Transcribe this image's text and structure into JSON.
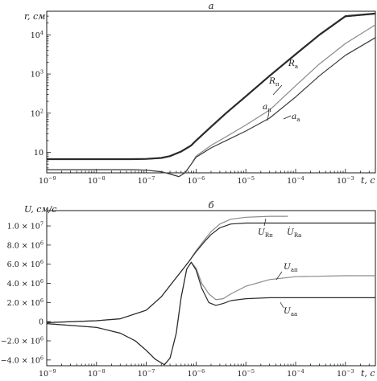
{
  "chart_data": [
    {
      "panel_label": "а",
      "type": "line",
      "ylabel": "r, см",
      "xlabel": "t, с",
      "xscale": "log",
      "yscale": "log",
      "xlim": [
        1e-09,
        0.004
      ],
      "ylim": [
        3,
        40000
      ],
      "x_ticks": [
        {
          "base": "10",
          "exp": "−9"
        },
        {
          "base": "10",
          "exp": "−8"
        },
        {
          "base": "10",
          "exp": "−7"
        },
        {
          "base": "10",
          "exp": "−6"
        },
        {
          "base": "10",
          "exp": "−5"
        },
        {
          "base": "10",
          "exp": "−4"
        },
        {
          "base": "10",
          "exp": "−3"
        }
      ],
      "x_tick_values": [
        1e-09,
        1e-08,
        1e-07,
        1e-06,
        1e-05,
        0.0001,
        0.001
      ],
      "y_ticks": [
        {
          "base": "10",
          "exp": ""
        },
        {
          "base": "10",
          "exp": "2"
        },
        {
          "base": "10",
          "exp": "3"
        },
        {
          "base": "10",
          "exp": "4"
        }
      ],
      "y_tick_values": [
        10,
        100,
        1000,
        10000
      ],
      "series": [
        {
          "name": "R",
          "sub": "п",
          "color": "#2b2b2b",
          "width": 2.2,
          "x": [
            1e-09,
            1e-08,
            5e-08,
            1e-07,
            2e-07,
            3e-07,
            5e-07,
            8e-07,
            1e-06,
            2e-06,
            4e-06,
            1e-05,
            3e-05,
            0.0001,
            0.0003,
            0.001,
            0.004
          ],
          "y": [
            6.7,
            6.7,
            6.7,
            6.8,
            7.2,
            8.0,
            10.5,
            15,
            20,
            45,
            100,
            270,
            900,
            3200,
            10000,
            30000,
            35000
          ]
        },
        {
          "name": "R",
          "sub": "а",
          "color": "#2b2b2b",
          "width": 1.2,
          "x": [
            1e-09,
            1e-08,
            5e-08,
            1e-07,
            2e-07,
            3e-07,
            5e-07,
            8e-07,
            1e-06,
            2e-06,
            4e-06,
            1e-05,
            3e-05,
            0.0001,
            0.0003,
            0.001,
            0.004
          ],
          "y": [
            6.6,
            6.6,
            6.6,
            6.7,
            7.1,
            7.9,
            10.3,
            14.7,
            19.6,
            44,
            98,
            265,
            880,
            3150,
            9800,
            29000,
            34000
          ]
        },
        {
          "name": "a",
          "sub": "п",
          "color": "#8a8a8a",
          "width": 1.2,
          "x": [
            1e-09,
            1e-08,
            5e-08,
            1e-07,
            2e-07,
            3e-07,
            4.5e-07,
            6e-07,
            8e-07,
            1e-06,
            2e-06,
            4e-06,
            1e-05,
            3e-05,
            0.0001,
            0.0003,
            0.001,
            0.004
          ],
          "y": [
            3.6,
            3.6,
            3.6,
            3.5,
            3.2,
            2.8,
            2.4,
            3.0,
            5.0,
            8.0,
            15,
            25,
            50,
            120,
            500,
            1800,
            6000,
            18000
          ]
        },
        {
          "name": "a",
          "sub": "а",
          "color": "#3a3a3a",
          "width": 1.2,
          "x": [
            1e-09,
            1e-08,
            5e-08,
            1e-07,
            2e-07,
            3e-07,
            4.5e-07,
            6e-07,
            8e-07,
            1e-06,
            2e-06,
            4e-06,
            1e-05,
            3e-05,
            0.0001,
            0.0003,
            0.001,
            0.004
          ],
          "y": [
            3.6,
            3.6,
            3.6,
            3.5,
            3.2,
            2.8,
            2.4,
            3.0,
            5.0,
            7.5,
            13,
            20,
            35,
            75,
            260,
            900,
            3000,
            8500
          ]
        }
      ]
    },
    {
      "panel_label": "б",
      "type": "line",
      "ylabel": "U, см/с",
      "xlabel": "t, с",
      "xscale": "log",
      "yscale": "linear",
      "xlim": [
        1e-09,
        0.004
      ],
      "ylim": [
        -4600000.0,
        11600000.0
      ],
      "x_ticks": [
        {
          "base": "10",
          "exp": "−9"
        },
        {
          "base": "10",
          "exp": "−8"
        },
        {
          "base": "10",
          "exp": "−7"
        },
        {
          "base": "10",
          "exp": "−6"
        },
        {
          "base": "10",
          "exp": "−5"
        },
        {
          "base": "10",
          "exp": "−4"
        },
        {
          "base": "10",
          "exp": "−3"
        }
      ],
      "x_tick_values": [
        1e-09,
        1e-08,
        1e-07,
        1e-06,
        1e-05,
        0.0001,
        0.001
      ],
      "y_ticks": [
        {
          "base": "−4.0 × 10",
          "exp": "6"
        },
        {
          "base": "−2.0 × 10",
          "exp": "6"
        },
        {
          "base": "0",
          "exp": ""
        },
        {
          "base": "2.0 × 10",
          "exp": "6"
        },
        {
          "base": "4.0 × 10",
          "exp": "6"
        },
        {
          "base": "6.0 × 10",
          "exp": "6"
        },
        {
          "base": "8.0 × 10",
          "exp": "6"
        },
        {
          "base": "1.0 × 10",
          "exp": "7"
        }
      ],
      "y_tick_values": [
        -4000000.0,
        -2000000.0,
        0,
        2000000.0,
        4000000.0,
        6000000.0,
        8000000.0,
        10000000.0
      ],
      "series": [
        {
          "name": "U",
          "sub": "Rп",
          "color": "#8a8a8a",
          "width": 1.2,
          "x": [
            1e-09,
            1e-08,
            3e-08,
            1e-07,
            2e-07,
            4e-07,
            7e-07,
            1e-06,
            1.5e-06,
            2e-06,
            3e-06,
            5e-06,
            1e-05,
            3e-05,
            7e-05
          ],
          "y": [
            -100000.0,
            100000.0,
            300000.0,
            1200000.0,
            2600000.0,
            4600000.0,
            6200000.0,
            7400000.0,
            8600000.0,
            9400000.0,
            10200000.0,
            10700000.0,
            10900000.0,
            11000000.0,
            11000000.0
          ]
        },
        {
          "name": "U",
          "sub": "Rа",
          "color": "#2b2b2b",
          "width": 1.2,
          "x": [
            1e-09,
            1e-08,
            3e-08,
            1e-07,
            2e-07,
            4e-07,
            7e-07,
            1e-06,
            1.5e-06,
            2e-06,
            3e-06,
            5e-06,
            1e-05,
            3e-05,
            0.0001,
            0.001,
            0.004
          ],
          "y": [
            -100000.0,
            100000.0,
            300000.0,
            1200000.0,
            2600000.0,
            4600000.0,
            6200000.0,
            7300000.0,
            8400000.0,
            9100000.0,
            9800000.0,
            10200000.0,
            10300000.0,
            10300000.0,
            10300000.0,
            10300000.0,
            10300000.0
          ]
        },
        {
          "name": "U",
          "sub": "aп",
          "color": "#8a8a8a",
          "width": 1.2,
          "x": [
            1e-09,
            1e-08,
            3e-08,
            6e-08,
            1e-07,
            1.5e-07,
            2.3e-07,
            3e-07,
            4e-07,
            5e-07,
            6.5e-07,
            8e-07,
            1e-06,
            1.3e-06,
            1.8e-06,
            2.5e-06,
            3.5e-06,
            5e-06,
            1e-05,
            3e-05,
            0.0001,
            0.001,
            0.004
          ],
          "y": [
            -200000.0,
            -600000.0,
            -1200000.0,
            -2000000.0,
            -3000000.0,
            -3900000.0,
            -4500000.0,
            -3800000.0,
            -1200000.0,
            2500000.0,
            5500000.0,
            6200000.0,
            5600000.0,
            4000000.0,
            2900000.0,
            2300000.0,
            2400000.0,
            2900000.0,
            3700000.0,
            4400000.0,
            4700000.0,
            4800000.0,
            4800000.0
          ]
        },
        {
          "name": "U",
          "sub": "aа",
          "color": "#2b2b2b",
          "width": 1.2,
          "x": [
            1e-09,
            1e-08,
            3e-08,
            6e-08,
            1e-07,
            1.5e-07,
            2.3e-07,
            3e-07,
            4e-07,
            5e-07,
            6.5e-07,
            8e-07,
            1e-06,
            1.3e-06,
            1.8e-06,
            2.5e-06,
            3.5e-06,
            5e-06,
            1e-05,
            3e-05,
            0.0001,
            0.001,
            0.004
          ],
          "y": [
            -200000.0,
            -600000.0,
            -1200000.0,
            -2000000.0,
            -3000000.0,
            -3900000.0,
            -4500000.0,
            -3800000.0,
            -1200000.0,
            2500000.0,
            5500000.0,
            6200000.0,
            5400000.0,
            3500000.0,
            2000000.0,
            1700000.0,
            1900000.0,
            2200000.0,
            2400000.0,
            2500000.0,
            2500000.0,
            2500000.0,
            2500000.0
          ]
        }
      ]
    }
  ]
}
